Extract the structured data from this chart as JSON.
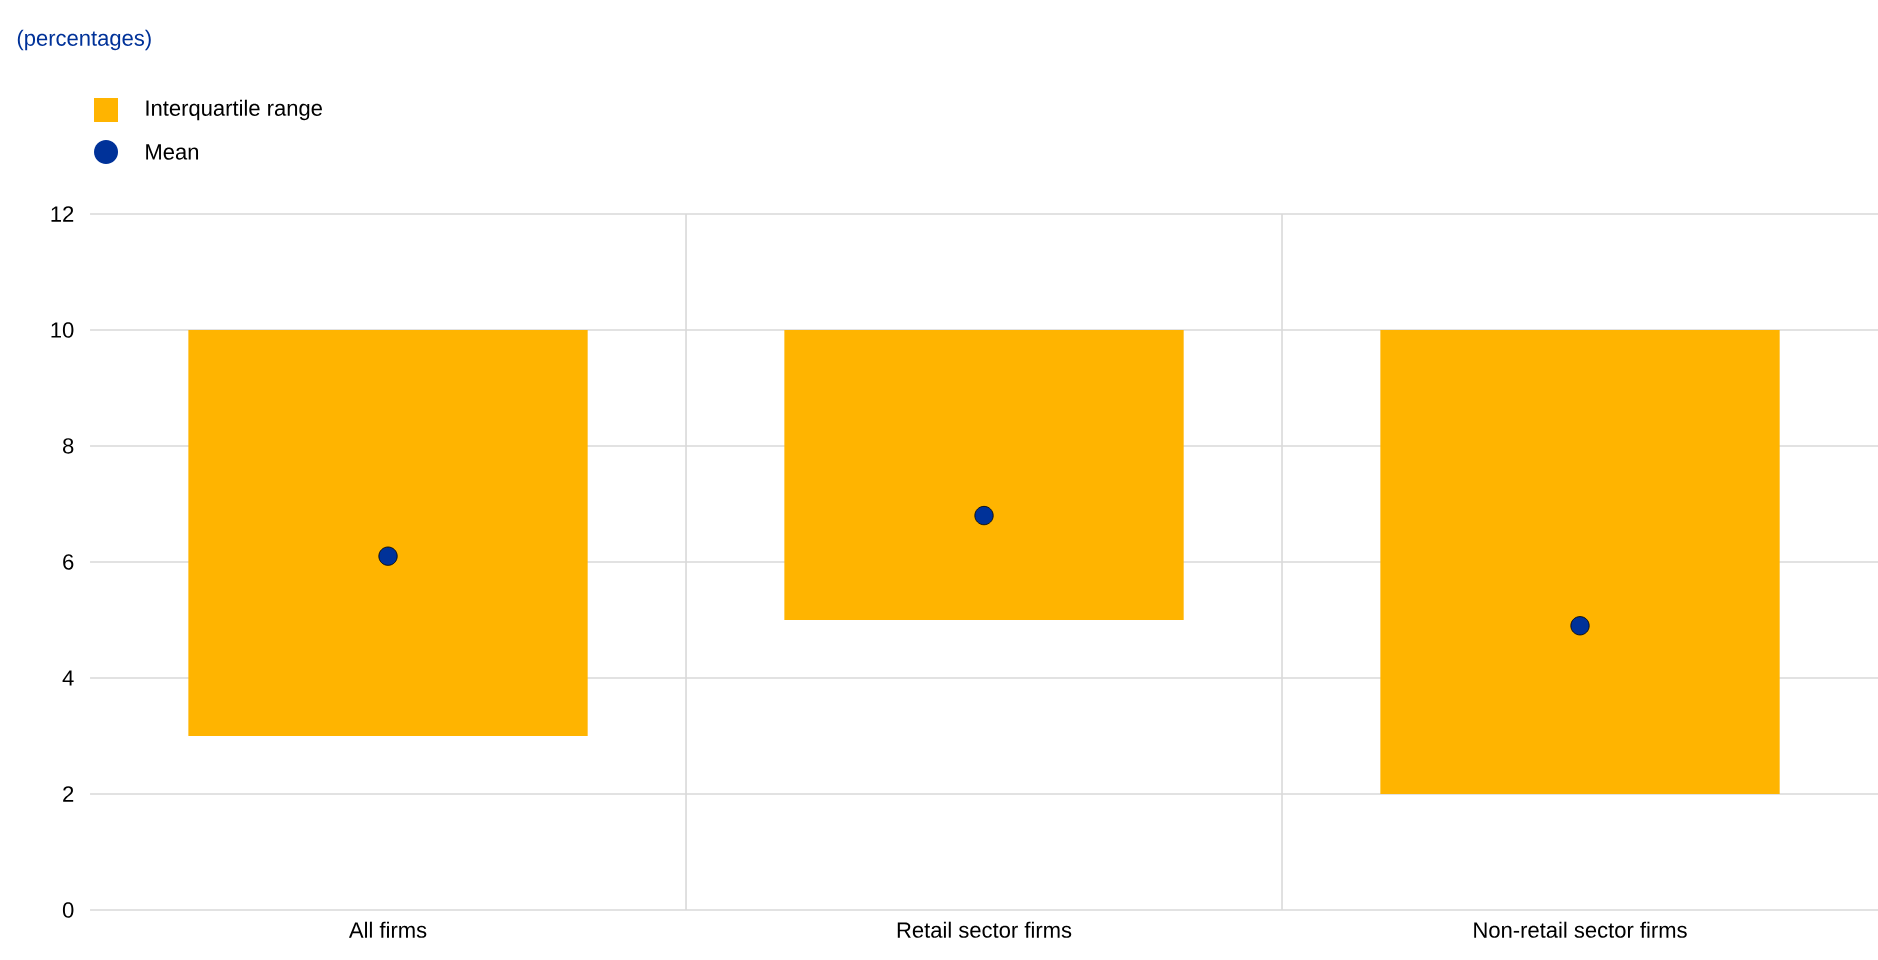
{
  "chart_data": {
    "type": "bar",
    "subtitle": "(percentages)",
    "categories": [
      "All firms",
      "Retail sector firms",
      "Non-retail sector firms"
    ],
    "series": [
      {
        "name": "Interquartile range",
        "color": "#ffb400",
        "values": [
          7,
          5,
          8
        ],
        "base": [
          3,
          5,
          2
        ]
      },
      {
        "name": "Mean",
        "type": "scatter",
        "color": "#003299",
        "marker": "circle",
        "values": [
          6.1,
          6.8,
          4.9
        ]
      }
    ],
    "ylim": [
      0,
      12
    ],
    "yticks": [
      0,
      2,
      4,
      6,
      8,
      10,
      12
    ],
    "grid": true,
    "legend": "top left"
  }
}
